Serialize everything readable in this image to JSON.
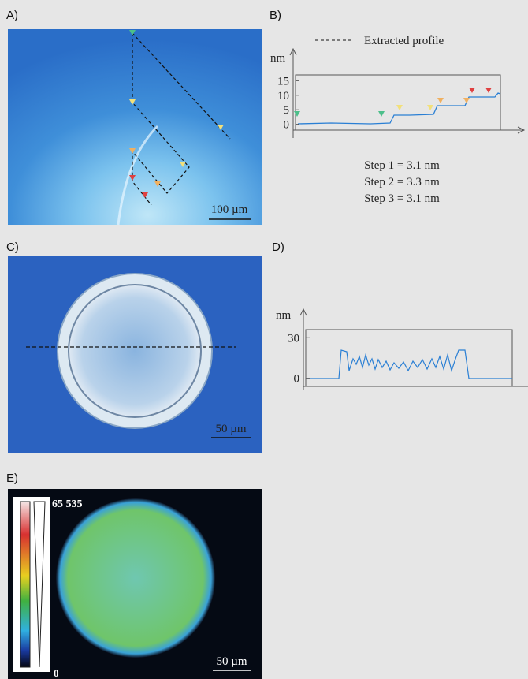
{
  "panels": [
    {
      "label": "A)",
      "scale_bar": "100 µm"
    },
    {
      "label": "B)",
      "legend": "Extracted profile",
      "y_axis_label": "nm",
      "ylim": [
        -2,
        17
      ],
      "yticks": [
        0,
        5,
        10,
        15
      ],
      "steps": [
        "Step 1 = 3.1 nm",
        "Step 2 = 3.3 nm",
        "Step 3 = 3.1 nm"
      ]
    },
    {
      "label": "C)",
      "scale_bar": "50 µm"
    },
    {
      "label": "D)",
      "y_axis_label": "nm",
      "ylim": [
        -6,
        36
      ],
      "yticks": [
        0,
        30
      ]
    },
    {
      "label": "E)",
      "colorbar_max": "65 535",
      "colorbar_min": "0",
      "scale_bar": "50 µm"
    }
  ]
}
